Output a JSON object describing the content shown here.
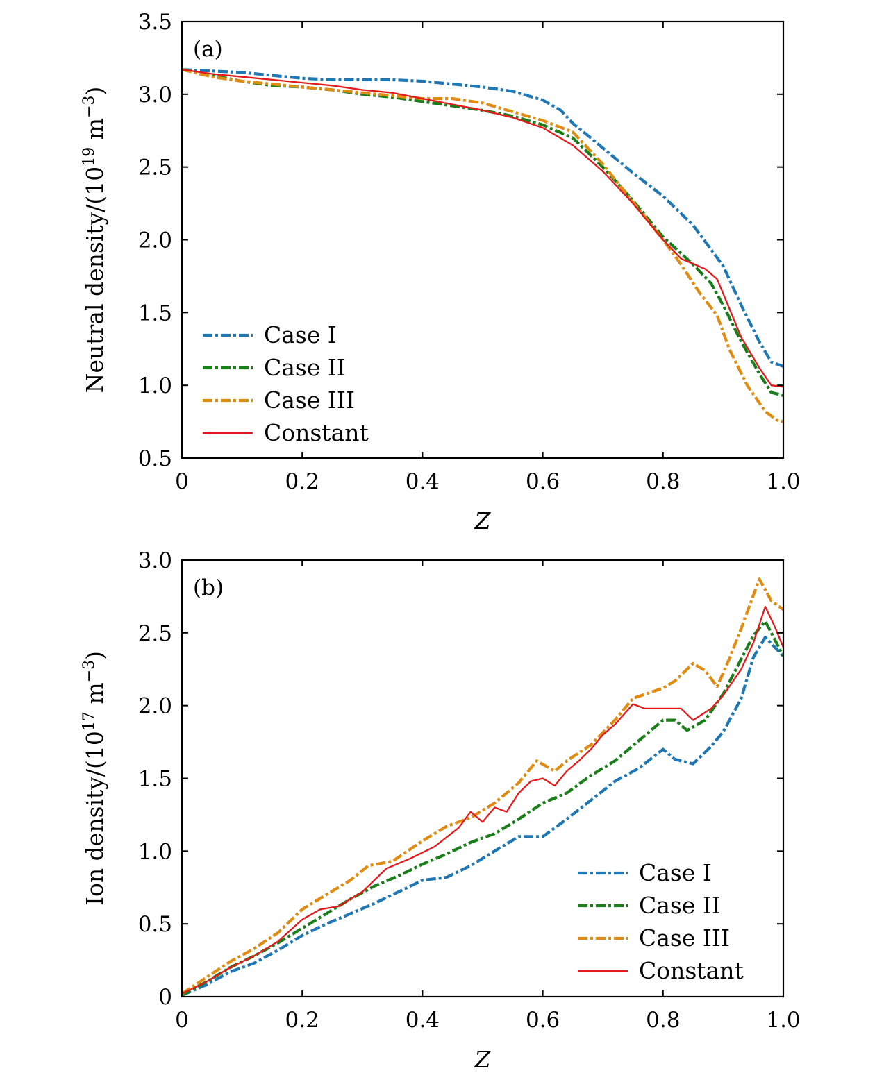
{
  "chart_data": [
    {
      "type": "line",
      "panel_label": "(a)",
      "xlabel": "Z",
      "ylabel_prefix": "Neutral density/(10",
      "ylabel_exp": "19",
      "ylabel_mid": " m",
      "ylabel_unit_exp": "−3",
      "ylabel_suffix": ")",
      "xlim": [
        0,
        1.0
      ],
      "ylim": [
        0.5,
        3.5
      ],
      "xticks": [
        0,
        0.2,
        0.4,
        0.6,
        0.8,
        1.0
      ],
      "xtick_labels": [
        "0",
        "0.2",
        "0.4",
        "0.6",
        "0.8",
        "1.0"
      ],
      "yticks": [
        0.5,
        1.0,
        1.5,
        2.0,
        2.5,
        3.0,
        3.5
      ],
      "ytick_labels": [
        "0.5",
        "1.0",
        "1.5",
        "2.0",
        "2.5",
        "3.0",
        "3.5"
      ],
      "grid": false,
      "legend_position": "lower-left",
      "series": [
        {
          "name": "Case I",
          "color": "#1f77b4",
          "style": "dashdot",
          "x": [
            0,
            0.05,
            0.1,
            0.15,
            0.2,
            0.25,
            0.3,
            0.35,
            0.4,
            0.45,
            0.5,
            0.55,
            0.6,
            0.63,
            0.65,
            0.68,
            0.7,
            0.75,
            0.8,
            0.85,
            0.9,
            0.93,
            0.96,
            0.98,
            1.0
          ],
          "y": [
            3.17,
            3.16,
            3.15,
            3.13,
            3.11,
            3.1,
            3.1,
            3.1,
            3.09,
            3.07,
            3.05,
            3.02,
            2.96,
            2.89,
            2.8,
            2.7,
            2.63,
            2.46,
            2.3,
            2.1,
            1.82,
            1.55,
            1.3,
            1.16,
            1.13
          ]
        },
        {
          "name": "Case II",
          "color": "#1a7f1a",
          "style": "dashdot",
          "x": [
            0,
            0.05,
            0.1,
            0.15,
            0.2,
            0.25,
            0.3,
            0.35,
            0.4,
            0.45,
            0.5,
            0.55,
            0.6,
            0.65,
            0.7,
            0.75,
            0.8,
            0.85,
            0.88,
            0.9,
            0.93,
            0.96,
            0.98,
            1.0
          ],
          "y": [
            3.17,
            3.13,
            3.09,
            3.06,
            3.05,
            3.03,
            3.0,
            2.98,
            2.95,
            2.92,
            2.89,
            2.85,
            2.79,
            2.7,
            2.5,
            2.27,
            2.02,
            1.83,
            1.7,
            1.55,
            1.3,
            1.08,
            0.95,
            0.93
          ]
        },
        {
          "name": "Case III",
          "color": "#e08c12",
          "style": "dashdot",
          "x": [
            0,
            0.05,
            0.1,
            0.15,
            0.2,
            0.25,
            0.3,
            0.35,
            0.4,
            0.45,
            0.5,
            0.55,
            0.6,
            0.65,
            0.7,
            0.75,
            0.8,
            0.83,
            0.86,
            0.89,
            0.91,
            0.94,
            0.97,
            0.99,
            1.0
          ],
          "y": [
            3.17,
            3.12,
            3.09,
            3.07,
            3.05,
            3.03,
            3.01,
            2.99,
            2.97,
            2.97,
            2.94,
            2.88,
            2.82,
            2.74,
            2.52,
            2.26,
            2.0,
            1.83,
            1.64,
            1.48,
            1.25,
            1.0,
            0.82,
            0.76,
            0.75
          ]
        },
        {
          "name": "Constant",
          "color": "#e41a1c",
          "style": "solid",
          "x": [
            0,
            0.05,
            0.1,
            0.15,
            0.2,
            0.25,
            0.3,
            0.35,
            0.4,
            0.45,
            0.5,
            0.55,
            0.6,
            0.65,
            0.7,
            0.75,
            0.8,
            0.83,
            0.87,
            0.89,
            0.91,
            0.93,
            0.96,
            0.98,
            1.0
          ],
          "y": [
            3.17,
            3.14,
            3.12,
            3.1,
            3.08,
            3.06,
            3.03,
            3.01,
            2.97,
            2.93,
            2.89,
            2.84,
            2.77,
            2.65,
            2.47,
            2.25,
            2.0,
            1.87,
            1.8,
            1.73,
            1.53,
            1.33,
            1.12,
            1.0,
            0.99
          ]
        }
      ]
    },
    {
      "type": "line",
      "panel_label": "(b)",
      "xlabel": "Z",
      "ylabel_prefix": "Ion density/(10",
      "ylabel_exp": "17",
      "ylabel_mid": " m",
      "ylabel_unit_exp": "−3",
      "ylabel_suffix": ")",
      "xlim": [
        0,
        1.0
      ],
      "ylim": [
        0,
        3.0
      ],
      "xticks": [
        0,
        0.2,
        0.4,
        0.6,
        0.8,
        1.0
      ],
      "xtick_labels": [
        "0",
        "0.2",
        "0.4",
        "0.6",
        "0.8",
        "1.0"
      ],
      "yticks": [
        0,
        0.5,
        1.0,
        1.5,
        2.0,
        2.5,
        3.0
      ],
      "ytick_labels": [
        "0",
        "0.5",
        "1.0",
        "1.5",
        "2.0",
        "2.5",
        "3.0"
      ],
      "grid": false,
      "legend_position": "lower-right",
      "series": [
        {
          "name": "Case I",
          "color": "#1f77b4",
          "style": "dashdot",
          "x": [
            0,
            0.04,
            0.08,
            0.12,
            0.16,
            0.2,
            0.24,
            0.28,
            0.32,
            0.36,
            0.4,
            0.44,
            0.48,
            0.52,
            0.56,
            0.6,
            0.64,
            0.68,
            0.72,
            0.76,
            0.8,
            0.82,
            0.85,
            0.88,
            0.9,
            0.93,
            0.95,
            0.97,
            1.0
          ],
          "y": [
            0.01,
            0.08,
            0.17,
            0.23,
            0.32,
            0.42,
            0.5,
            0.57,
            0.64,
            0.72,
            0.8,
            0.82,
            0.9,
            1.0,
            1.1,
            1.1,
            1.22,
            1.35,
            1.48,
            1.57,
            1.7,
            1.63,
            1.6,
            1.72,
            1.82,
            2.05,
            2.33,
            2.47,
            2.34
          ]
        },
        {
          "name": "Case II",
          "color": "#1a7f1a",
          "style": "dashdot",
          "x": [
            0,
            0.04,
            0.08,
            0.12,
            0.16,
            0.2,
            0.24,
            0.28,
            0.32,
            0.36,
            0.4,
            0.44,
            0.48,
            0.52,
            0.56,
            0.6,
            0.64,
            0.68,
            0.72,
            0.76,
            0.8,
            0.82,
            0.84,
            0.87,
            0.9,
            0.93,
            0.95,
            0.97,
            1.0
          ],
          "y": [
            0.01,
            0.1,
            0.2,
            0.28,
            0.37,
            0.47,
            0.57,
            0.67,
            0.76,
            0.83,
            0.91,
            0.98,
            1.06,
            1.12,
            1.22,
            1.33,
            1.4,
            1.52,
            1.62,
            1.76,
            1.9,
            1.9,
            1.83,
            1.9,
            2.08,
            2.32,
            2.48,
            2.58,
            2.34
          ]
        },
        {
          "name": "Case III",
          "color": "#e08c12",
          "style": "dashdot",
          "x": [
            0,
            0.04,
            0.08,
            0.12,
            0.16,
            0.2,
            0.24,
            0.28,
            0.31,
            0.35,
            0.4,
            0.44,
            0.48,
            0.52,
            0.56,
            0.59,
            0.62,
            0.64,
            0.68,
            0.72,
            0.75,
            0.8,
            0.82,
            0.85,
            0.87,
            0.89,
            0.91,
            0.93,
            0.96,
            0.98,
            1.0
          ],
          "y": [
            0.02,
            0.13,
            0.24,
            0.33,
            0.44,
            0.6,
            0.7,
            0.8,
            0.9,
            0.93,
            1.07,
            1.17,
            1.23,
            1.33,
            1.47,
            1.62,
            1.55,
            1.62,
            1.73,
            1.9,
            2.05,
            2.12,
            2.17,
            2.29,
            2.24,
            2.13,
            2.32,
            2.53,
            2.87,
            2.72,
            2.66
          ]
        },
        {
          "name": "Constant",
          "color": "#e41a1c",
          "style": "solid",
          "x": [
            0,
            0.04,
            0.08,
            0.12,
            0.16,
            0.2,
            0.23,
            0.26,
            0.3,
            0.34,
            0.38,
            0.42,
            0.46,
            0.48,
            0.5,
            0.52,
            0.54,
            0.56,
            0.58,
            0.6,
            0.62,
            0.64,
            0.66,
            0.68,
            0.7,
            0.72,
            0.75,
            0.77,
            0.8,
            0.83,
            0.85,
            0.88,
            0.9,
            0.93,
            0.95,
            0.97,
            0.985,
            1.0
          ],
          "y": [
            0.02,
            0.1,
            0.2,
            0.28,
            0.38,
            0.53,
            0.6,
            0.62,
            0.72,
            0.88,
            0.95,
            1.03,
            1.16,
            1.27,
            1.2,
            1.3,
            1.27,
            1.4,
            1.48,
            1.5,
            1.45,
            1.55,
            1.62,
            1.7,
            1.8,
            1.87,
            2.01,
            1.98,
            1.98,
            1.98,
            1.9,
            1.98,
            2.07,
            2.25,
            2.43,
            2.68,
            2.55,
            2.4
          ]
        }
      ]
    }
  ]
}
